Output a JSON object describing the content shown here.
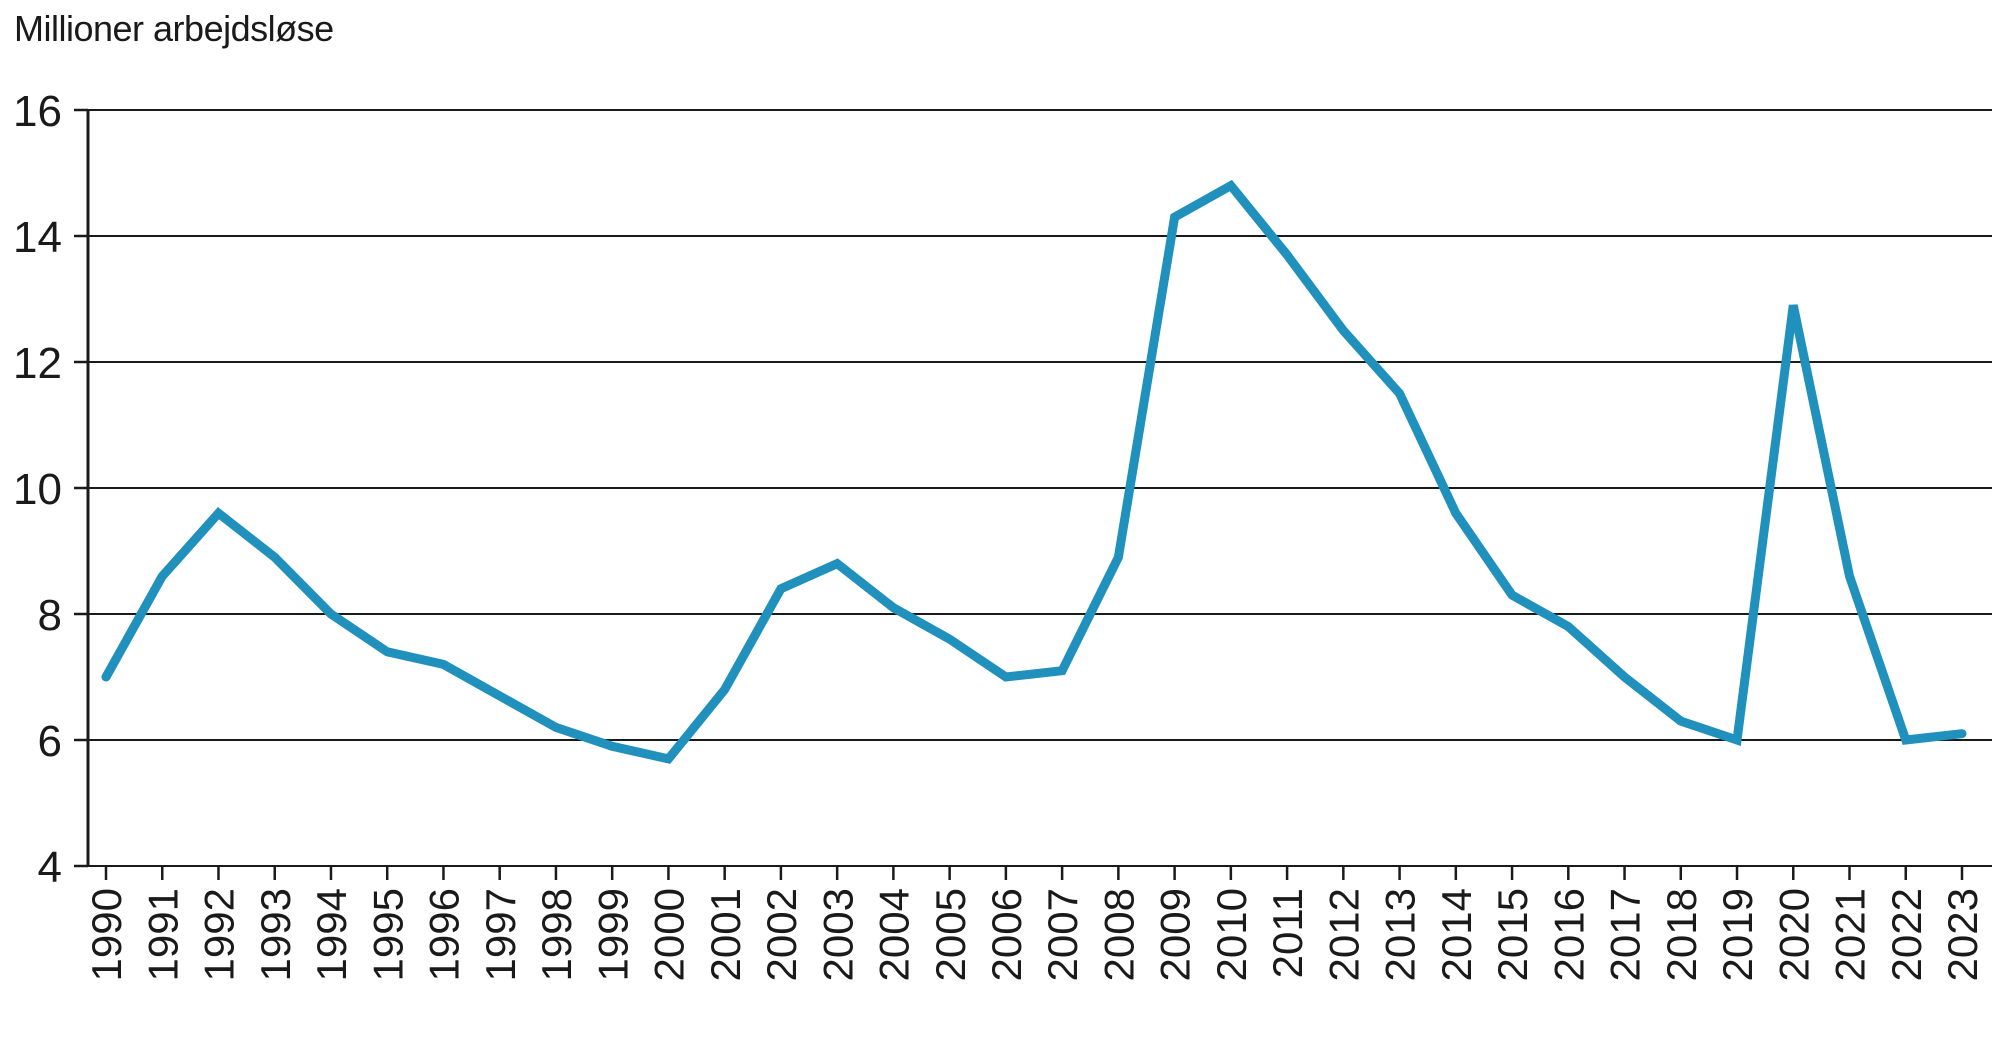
{
  "page": {
    "background": "#ffffff"
  },
  "chart_data": {
    "type": "line",
    "title": "Millioner arbejdsløse",
    "x": [
      "1990",
      "1991",
      "1992",
      "1993",
      "1994",
      "1995",
      "1996",
      "1997",
      "1998",
      "1999",
      "2000",
      "2001",
      "2002",
      "2003",
      "2004",
      "2005",
      "2006",
      "2007",
      "2008",
      "2009",
      "2010",
      "2011",
      "2012",
      "2013",
      "2014",
      "2015",
      "2016",
      "2017",
      "2018",
      "2019",
      "2020",
      "2021",
      "2022",
      "2023"
    ],
    "values": [
      7.0,
      8.6,
      9.6,
      8.9,
      8.0,
      7.4,
      7.2,
      6.7,
      6.2,
      5.9,
      5.7,
      6.8,
      8.4,
      8.8,
      8.1,
      7.6,
      7.0,
      7.1,
      8.9,
      14.3,
      14.8,
      13.7,
      12.5,
      11.5,
      9.6,
      8.3,
      7.8,
      7.0,
      6.3,
      6.0,
      12.9,
      8.6,
      6.0,
      6.1
    ],
    "xlabel": "",
    "ylabel": "",
    "ylim": [
      4,
      16
    ],
    "yticks": [
      4,
      6,
      8,
      10,
      12,
      14,
      16
    ],
    "grid": true,
    "legend": "none",
    "line_color": "#2090bd",
    "axis_color": "#1a1a1a",
    "text_color": "#1a1a1a"
  }
}
